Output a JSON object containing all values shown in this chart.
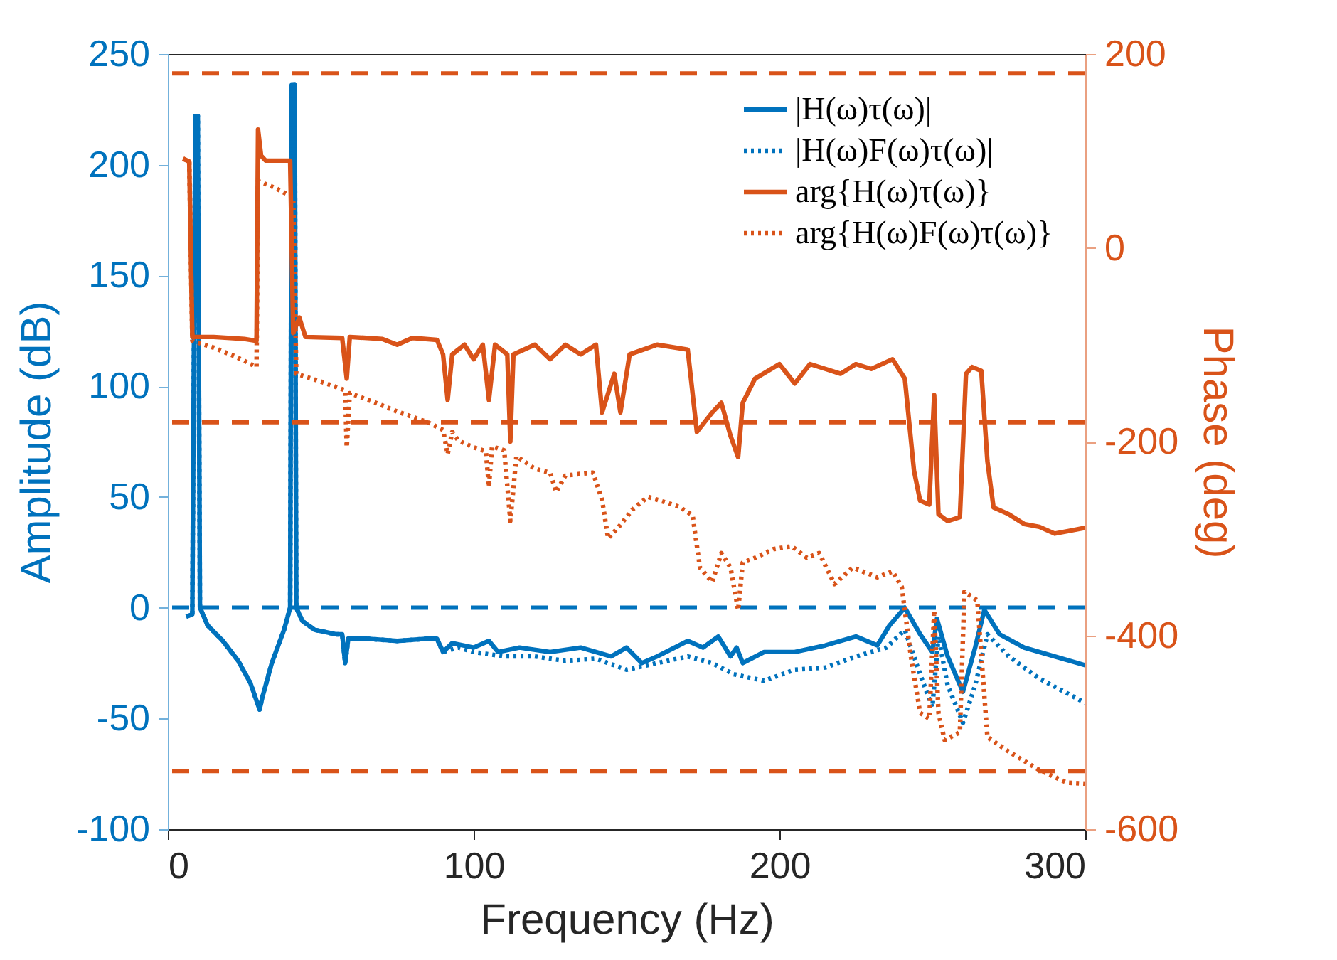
{
  "chart_data": {
    "type": "line",
    "xlabel": "Frequency (Hz)",
    "ylabel": "Amplitude (dB)",
    "y2label": "Phase (deg)",
    "xlim": [
      0,
      300
    ],
    "xticks": [
      0,
      100,
      200,
      300
    ],
    "ylim": [
      -100,
      250
    ],
    "yticks": [
      -100,
      -50,
      0,
      50,
      100,
      150,
      200,
      250
    ],
    "y2lim": [
      -600,
      200
    ],
    "y2ticks": [
      -600,
      -400,
      -200,
      0,
      200
    ],
    "grid": false,
    "legend": "top right",
    "marker": "none",
    "series": [
      {
        "name": "|H(ω)τ(ω)|",
        "color": "#0072bd",
        "line_style": "solid",
        "x": [
          6,
          8,
          9,
          9.8,
          10.5,
          13,
          18,
          23,
          27,
          29,
          30,
          31,
          34,
          38,
          40,
          40.5,
          41.5,
          42,
          44,
          48,
          55,
          57,
          58,
          59,
          65,
          75,
          85,
          88,
          90,
          93,
          100,
          105,
          108,
          115,
          125,
          135,
          145,
          150,
          155,
          160,
          170,
          175,
          180,
          184,
          186,
          188,
          195,
          205,
          215,
          225,
          232,
          236,
          241,
          246,
          250,
          251.5,
          255,
          260,
          264,
          267,
          272,
          280,
          290,
          300
        ],
        "values": [
          -4,
          -3,
          222,
          222,
          0,
          -8,
          -15,
          -24,
          -34,
          -42,
          -46,
          -40,
          -25,
          -10,
          0,
          236,
          236,
          0,
          -6,
          -10,
          -12,
          -12,
          -25,
          -14,
          -14,
          -15,
          -14,
          -14,
          -20,
          -16,
          -18,
          -15,
          -20,
          -18,
          -20,
          -18,
          -22,
          -18,
          -25,
          -22,
          -15,
          -18,
          -13,
          -22,
          -18,
          -25,
          -20,
          -20,
          -17,
          -13,
          -17,
          -8,
          0,
          -12,
          -20,
          -5,
          -22,
          -38,
          -18,
          -1,
          -12,
          -18,
          -22,
          -26
        ]
      },
      {
        "name": "|H(ω)F(ω)τ(ω)|",
        "color": "#0072bd",
        "line_style": "dotted",
        "x": [
          6,
          8,
          9,
          9.8,
          10.5,
          13,
          18,
          23,
          27,
          29,
          30,
          31,
          34,
          38,
          40,
          40.5,
          41.5,
          42,
          44,
          48,
          55,
          57,
          58,
          59,
          65,
          75,
          85,
          88,
          90,
          95,
          100,
          110,
          120,
          130,
          140,
          150,
          160,
          170,
          178,
          185,
          195,
          205,
          215,
          225,
          235,
          241,
          246,
          250,
          252,
          255,
          260,
          264,
          268,
          275,
          285,
          300
        ],
        "values": [
          -4,
          -3,
          222,
          222,
          0,
          -8,
          -15,
          -24,
          -34,
          -42,
          -46,
          -40,
          -25,
          -10,
          0,
          236,
          236,
          0,
          -6,
          -10,
          -12,
          -12,
          -25,
          -14,
          -14,
          -15,
          -14,
          -14,
          -20,
          -18,
          -20,
          -22,
          -22,
          -24,
          -23,
          -28,
          -25,
          -22,
          -25,
          -30,
          -33,
          -28,
          -27,
          -22,
          -18,
          -10,
          -30,
          -45,
          -13,
          -35,
          -52,
          -35,
          -12,
          -22,
          -32,
          -43
        ]
      },
      {
        "name": "arg{H(ω)τ(ω)}",
        "color": "#d95319",
        "line_style": "solid",
        "axis": "y2",
        "x": [
          5,
          7,
          8,
          15,
          25,
          29,
          29.5,
          30.5,
          32,
          40,
          41,
          43,
          45,
          57,
          58.5,
          59.5,
          70,
          75,
          80,
          88,
          90,
          91.5,
          93,
          97,
          100,
          103,
          105,
          107,
          111,
          112,
          113,
          120,
          125,
          130,
          135,
          140,
          142,
          146,
          148,
          151,
          160,
          170,
          173,
          178,
          181,
          184,
          186.5,
          188,
          192,
          200,
          205,
          210,
          215,
          220,
          225,
          230,
          237,
          241,
          244,
          246,
          249,
          250.6,
          252,
          255,
          259,
          261,
          263,
          266,
          268,
          270,
          275,
          280,
          285,
          290,
          295,
          300
        ],
        "values": [
          92,
          89,
          -92,
          -92,
          -94,
          -96,
          122,
          95,
          90,
          90,
          -88,
          -72,
          -92,
          -93,
          -135,
          -92,
          -94,
          -100,
          -93,
          -95,
          -110,
          -157,
          -110,
          -100,
          -115,
          -100,
          -157,
          -100,
          -110,
          -200,
          -110,
          -100,
          -115,
          -100,
          -110,
          -100,
          -170,
          -130,
          -170,
          -110,
          -100,
          -105,
          -190,
          -170,
          -160,
          -194,
          -216,
          -160,
          -135,
          -120,
          -140,
          -120,
          -125,
          -130,
          -120,
          -125,
          -115,
          -135,
          -230,
          -261,
          -265,
          -152,
          -275,
          -282,
          -278,
          -130,
          -123,
          -127,
          -220,
          -268,
          -275,
          -285,
          -288,
          -295,
          -292,
          -289
        ]
      },
      {
        "name": "arg{H(ω)F(ω)τ(ω)}",
        "color": "#d95319",
        "line_style": "dotted",
        "axis": "y2",
        "x": [
          5,
          7,
          8,
          15,
          22,
          29,
          29.5,
          35,
          41,
          42,
          50,
          58,
          58.5,
          59.5,
          68,
          75,
          85,
          90,
          91.5,
          93,
          95,
          100,
          104,
          105,
          106,
          110,
          112,
          114,
          120,
          125,
          127,
          130,
          139,
          142,
          144,
          148,
          152,
          157,
          162,
          167,
          171.6,
          174,
          178,
          181,
          184,
          186.5,
          188,
          192,
          198,
          204,
          209,
          213,
          218,
          224,
          232,
          237,
          240,
          243,
          246,
          249,
          250.6,
          252,
          254,
          259,
          260.5,
          264.7,
          268,
          275,
          285,
          294,
          300
        ],
        "values": [
          92,
          89,
          -96,
          -103,
          -112,
          -123,
          69,
          62,
          52,
          -130,
          -138,
          -147,
          -206,
          -150,
          -160,
          -169,
          -180,
          -188,
          -213,
          -190,
          -199,
          -206,
          -210,
          -247,
          -205,
          -209,
          -282,
          -215,
          -228,
          -232,
          -252,
          -235,
          -232,
          -260,
          -300,
          -286,
          -270,
          -257,
          -262,
          -267,
          -276,
          -330,
          -345,
          -315,
          -330,
          -374,
          -325,
          -320,
          -311,
          -308,
          -320,
          -315,
          -347,
          -330,
          -340,
          -334,
          -350,
          -422,
          -480,
          -486,
          -374,
          -480,
          -508,
          -500,
          -355,
          -364,
          -505,
          -520,
          -539,
          -552,
          -553
        ]
      }
    ],
    "ref_lines": [
      {
        "axis": "y",
        "value": 0,
        "color": "#0072bd",
        "line_style": "dashed"
      },
      {
        "axis": "y2",
        "value": 180,
        "color": "#d95319",
        "line_style": "dashed"
      },
      {
        "axis": "y2",
        "value": -180,
        "color": "#d95319",
        "line_style": "dashed"
      },
      {
        "axis": "y2",
        "value": -540,
        "color": "#d95319",
        "line_style": "dashed"
      }
    ]
  }
}
